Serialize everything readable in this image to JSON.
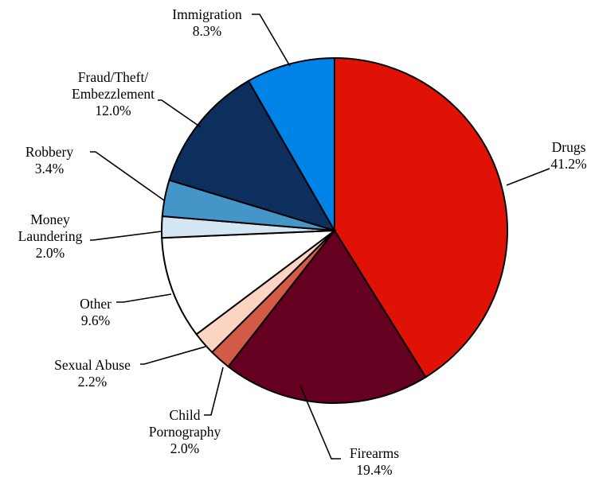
{
  "chart_data": {
    "type": "pie",
    "title": "",
    "unit": "%",
    "start_angle_deg": 0,
    "direction": "clockwise",
    "slices": [
      {
        "name": "Drugs",
        "label_lines": [
          "Drugs"
        ],
        "value_label": "41.2%",
        "value": 41.2,
        "color": "#E01206"
      },
      {
        "name": "Firearms",
        "label_lines": [
          "Firearms"
        ],
        "value_label": "19.4%",
        "value": 19.4,
        "color": "#650020"
      },
      {
        "name": "Child Pornography",
        "label_lines": [
          "Child",
          "Pornography"
        ],
        "value_label": "2.0%",
        "value": 2.0,
        "color": "#D45A48"
      },
      {
        "name": "Sexual Abuse",
        "label_lines": [
          "Sexual Abuse"
        ],
        "value_label": "2.2%",
        "value": 2.2,
        "color": "#FCD4C4"
      },
      {
        "name": "Other",
        "label_lines": [
          "Other"
        ],
        "value_label": "9.6%",
        "value": 9.6,
        "color": "#FFFFFF"
      },
      {
        "name": "Money Laundering",
        "label_lines": [
          "Money",
          "Laundering"
        ],
        "value_label": "2.0%",
        "value": 2.0,
        "color": "#D3E6F2"
      },
      {
        "name": "Robbery",
        "label_lines": [
          "Robbery"
        ],
        "value_label": "3.4%",
        "value": 3.4,
        "color": "#4595C8"
      },
      {
        "name": "Fraud/Theft/Embezzlement",
        "label_lines": [
          "Fraud/Theft/",
          "Embezzlement"
        ],
        "value_label": "12.0%",
        "value": 12.0,
        "color": "#0D2F5E"
      },
      {
        "name": "Immigration",
        "label_lines": [
          "Immigration"
        ],
        "value_label": "8.3%",
        "value": 8.3,
        "color": "#0083E6"
      }
    ]
  }
}
